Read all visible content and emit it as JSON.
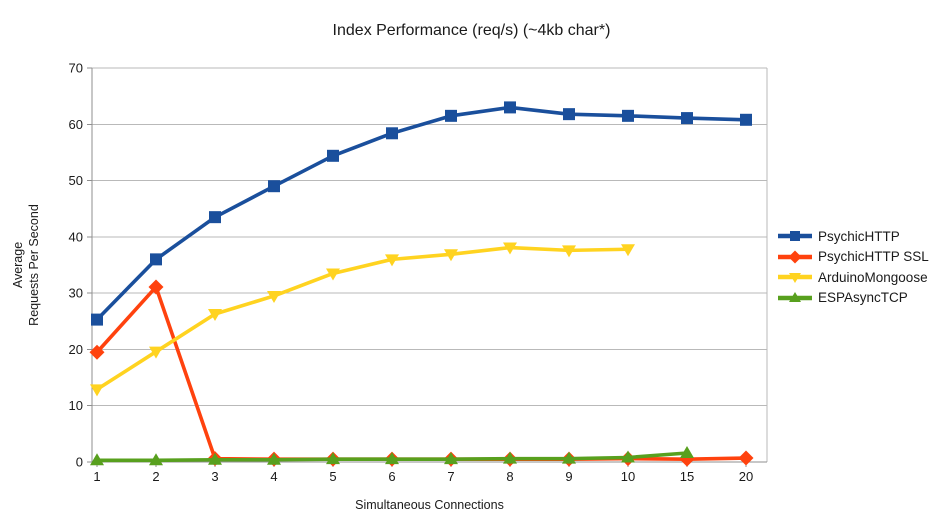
{
  "chart_data": {
    "type": "line",
    "title": "Index Performance (req/s) (~4kb char*)",
    "xlabel": "Simultaneous Connections",
    "ylabel_lines": [
      "Average",
      "Requests Per Second"
    ],
    "categories": [
      "1",
      "2",
      "3",
      "4",
      "5",
      "6",
      "7",
      "8",
      "9",
      "10",
      "15",
      "20"
    ],
    "y_ticks": [
      0,
      10,
      20,
      30,
      40,
      50,
      60,
      70
    ],
    "ylim": [
      0,
      70
    ],
    "grid": "horizontal",
    "legend_position": "right",
    "colors": {
      "grid": "#b9b9b9",
      "axis": "#8f8f8f",
      "text": "#1a1a1a"
    },
    "series": [
      {
        "name": "PsychicHTTP",
        "color": "#1A4F9C",
        "marker": "square",
        "values": [
          25.3,
          36.0,
          43.5,
          49.0,
          54.4,
          58.4,
          61.5,
          63.0,
          61.8,
          61.5,
          61.1,
          60.8
        ]
      },
      {
        "name": "PsychicHTTP SSL",
        "color": "#FF420E",
        "marker": "diamond",
        "values": [
          19.5,
          31.1,
          0.6,
          0.5,
          0.5,
          0.5,
          0.5,
          0.5,
          0.5,
          0.6,
          0.5,
          0.7
        ]
      },
      {
        "name": "ArduinoMongoose",
        "color": "#FFD320",
        "marker": "triangle-down",
        "values": [
          12.9,
          19.6,
          26.3,
          29.5,
          33.5,
          36.0,
          36.9,
          38.1,
          37.6,
          37.8
        ]
      },
      {
        "name": "ESPAsyncTCP",
        "color": "#58A01E",
        "marker": "triangle-up",
        "values": [
          0.3,
          0.3,
          0.4,
          0.4,
          0.5,
          0.5,
          0.5,
          0.6,
          0.6,
          0.8,
          1.6
        ]
      }
    ]
  }
}
